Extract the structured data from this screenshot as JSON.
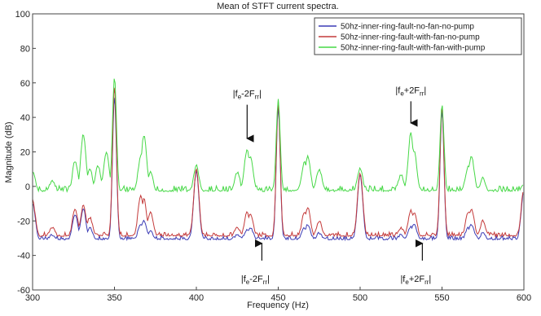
{
  "chart_data": {
    "type": "line",
    "title": "Mean of STFT current spectra.",
    "xlabel": "Frequency (Hz)",
    "ylabel": "Magnitude (dB)",
    "xlim": [
      300,
      600
    ],
    "ylim": [
      -60,
      100
    ],
    "x_ticks": [
      300,
      350,
      400,
      450,
      500,
      550,
      600
    ],
    "y_ticks": [
      -60,
      -40,
      -20,
      0,
      20,
      40,
      60,
      80,
      100
    ],
    "grid": false,
    "legend_position": "top-right",
    "series": [
      {
        "name": "50hz-inner-ring-fault-no-fan-no-pump",
        "color": "#3b3bb5",
        "baseline": -31,
        "noise": 2.5,
        "peaks": [
          [
            300,
            -10
          ],
          [
            312,
            -28
          ],
          [
            326,
            -16
          ],
          [
            331,
            -13
          ],
          [
            335,
            -24
          ],
          [
            350,
            52
          ],
          [
            366,
            -22
          ],
          [
            368,
            -20
          ],
          [
            372,
            -26
          ],
          [
            400,
            9
          ],
          [
            425,
            -28
          ],
          [
            431,
            -25
          ],
          [
            433,
            -24
          ],
          [
            450,
            46
          ],
          [
            466,
            -24
          ],
          [
            468,
            -22
          ],
          [
            475,
            -27
          ],
          [
            500,
            7
          ],
          [
            525,
            -28
          ],
          [
            531,
            -23
          ],
          [
            533,
            -22
          ],
          [
            550,
            44
          ],
          [
            566,
            -24
          ],
          [
            568,
            -22
          ],
          [
            575,
            -27
          ],
          [
            600,
            -2
          ]
        ]
      },
      {
        "name": "50hz-inner-ring-fault-with-fan-no-pump",
        "color": "#c43a3a",
        "baseline": -29,
        "noise": 2.5,
        "peaks": [
          [
            300,
            -8
          ],
          [
            312,
            -24
          ],
          [
            326,
            -13
          ],
          [
            331,
            -11
          ],
          [
            335,
            -18
          ],
          [
            350,
            58
          ],
          [
            366,
            -5
          ],
          [
            368,
            -7
          ],
          [
            372,
            -15
          ],
          [
            400,
            10
          ],
          [
            425,
            -24
          ],
          [
            431,
            -15
          ],
          [
            433,
            -16
          ],
          [
            450,
            49
          ],
          [
            466,
            -15
          ],
          [
            468,
            -12
          ],
          [
            475,
            -20
          ],
          [
            500,
            8
          ],
          [
            525,
            -24
          ],
          [
            531,
            -14
          ],
          [
            533,
            -15
          ],
          [
            550,
            47
          ],
          [
            566,
            -15
          ],
          [
            568,
            -13
          ],
          [
            575,
            -20
          ],
          [
            600,
            -1
          ]
        ]
      },
      {
        "name": "50hz-inner-ring-fault-with-fan-with-pump",
        "color": "#46d846",
        "baseline": -3,
        "noise": 3.5,
        "peaks": [
          [
            300,
            8
          ],
          [
            312,
            3
          ],
          [
            326,
            15
          ],
          [
            331,
            30
          ],
          [
            335,
            10
          ],
          [
            340,
            12
          ],
          [
            345,
            20
          ],
          [
            350,
            63
          ],
          [
            366,
            17
          ],
          [
            368,
            30
          ],
          [
            372,
            8
          ],
          [
            400,
            12
          ],
          [
            425,
            8
          ],
          [
            431,
            22
          ],
          [
            433,
            18
          ],
          [
            450,
            50
          ],
          [
            466,
            14
          ],
          [
            468,
            17
          ],
          [
            475,
            10
          ],
          [
            500,
            10
          ],
          [
            525,
            7
          ],
          [
            531,
            31
          ],
          [
            533,
            20
          ],
          [
            550,
            47
          ],
          [
            566,
            12
          ],
          [
            568,
            17
          ],
          [
            575,
            5
          ],
          [
            600,
            2
          ]
        ]
      }
    ],
    "annotations_above": [
      {
        "text_base": "|f",
        "sub1": "e",
        "mid": "-2F",
        "sub2": "rr",
        "end": "|",
        "x": 431,
        "arrow_from_y": 36,
        "arrow_to_y": 24
      },
      {
        "text_base": "|f",
        "sub1": "e",
        "mid": "+2F",
        "sub2": "rr",
        "end": "|",
        "x": 531,
        "arrow_from_y": 38,
        "arrow_to_y": 33
      }
    ],
    "annotations_below": [
      {
        "text_base": "|f",
        "sub1": "e",
        "mid": "-2F",
        "sub2": "rr",
        "end": "|",
        "x": 440,
        "arrow_from_y": -43,
        "arrow_to_y": -33
      },
      {
        "text_base": "|f",
        "sub1": "e",
        "mid": "+2F",
        "sub2": "rr",
        "end": "|",
        "x": 538,
        "arrow_from_y": -43,
        "arrow_to_y": -33
      }
    ]
  }
}
